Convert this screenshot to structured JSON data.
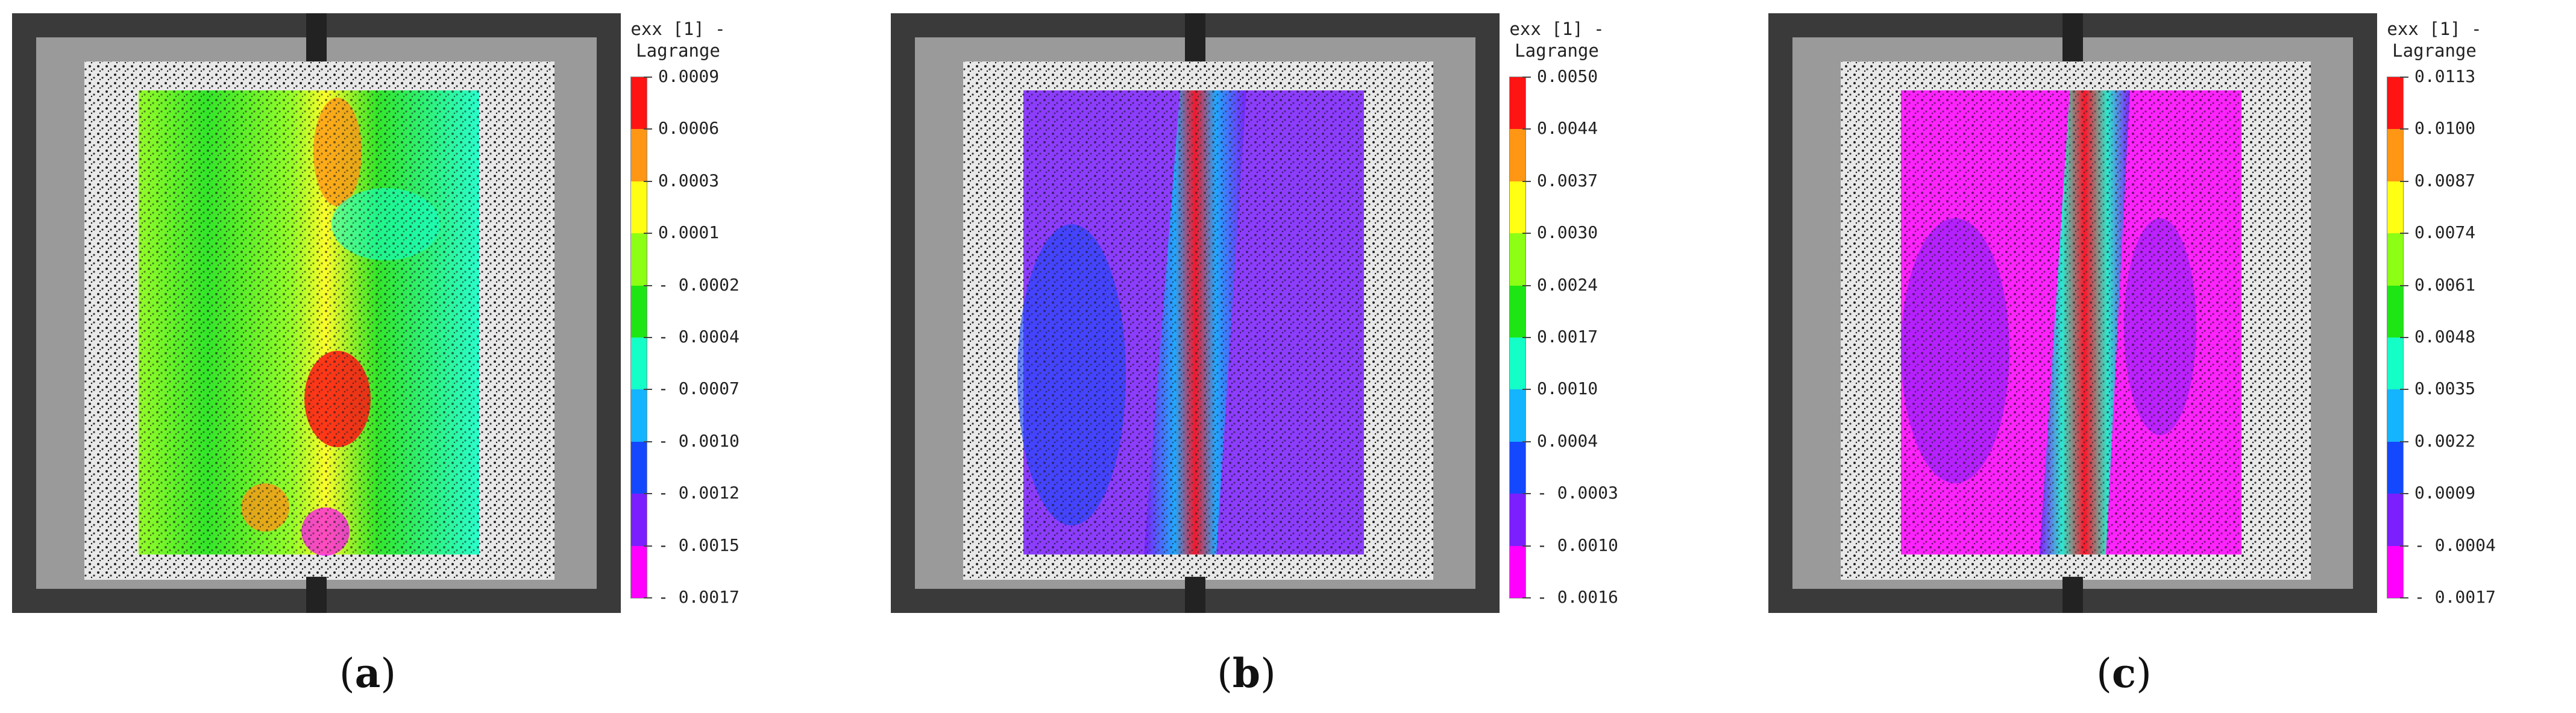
{
  "palette": [
    "#ff00ff",
    "#7b1fff",
    "#1448ff",
    "#14b4ff",
    "#14ffc8",
    "#1ee614",
    "#8cff14",
    "#ffff14",
    "#ff9614",
    "#ff1414"
  ],
  "panels": [
    {
      "id": "a",
      "caption_letter": "a",
      "legend": {
        "title_line1": "exx [1] -",
        "title_line2": "Lagrange",
        "ticks": [
          "0.0009",
          "0.0006",
          "0.0003",
          "0.0001",
          "- 0.0002",
          "- 0.0004",
          "- 0.0007",
          "- 0.0010",
          "- 0.0012",
          "- 0.0015",
          "- 0.0017"
        ]
      }
    },
    {
      "id": "b",
      "caption_letter": "b",
      "legend": {
        "title_line1": "exx [1] -",
        "title_line2": "Lagrange",
        "ticks": [
          "0.0050",
          "0.0044",
          "0.0037",
          "0.0030",
          "0.0024",
          "0.0017",
          "0.0010",
          "0.0004",
          "- 0.0003",
          "- 0.0010",
          "- 0.0016"
        ]
      }
    },
    {
      "id": "c",
      "caption_letter": "c",
      "legend": {
        "title_line1": "exx [1] -",
        "title_line2": "Lagrange",
        "ticks": [
          "0.0113",
          "0.0100",
          "0.0087",
          "0.0074",
          "0.0061",
          "0.0048",
          "0.0035",
          "0.0022",
          "0.0009",
          "- 0.0004",
          "- 0.0017"
        ]
      }
    }
  ]
}
